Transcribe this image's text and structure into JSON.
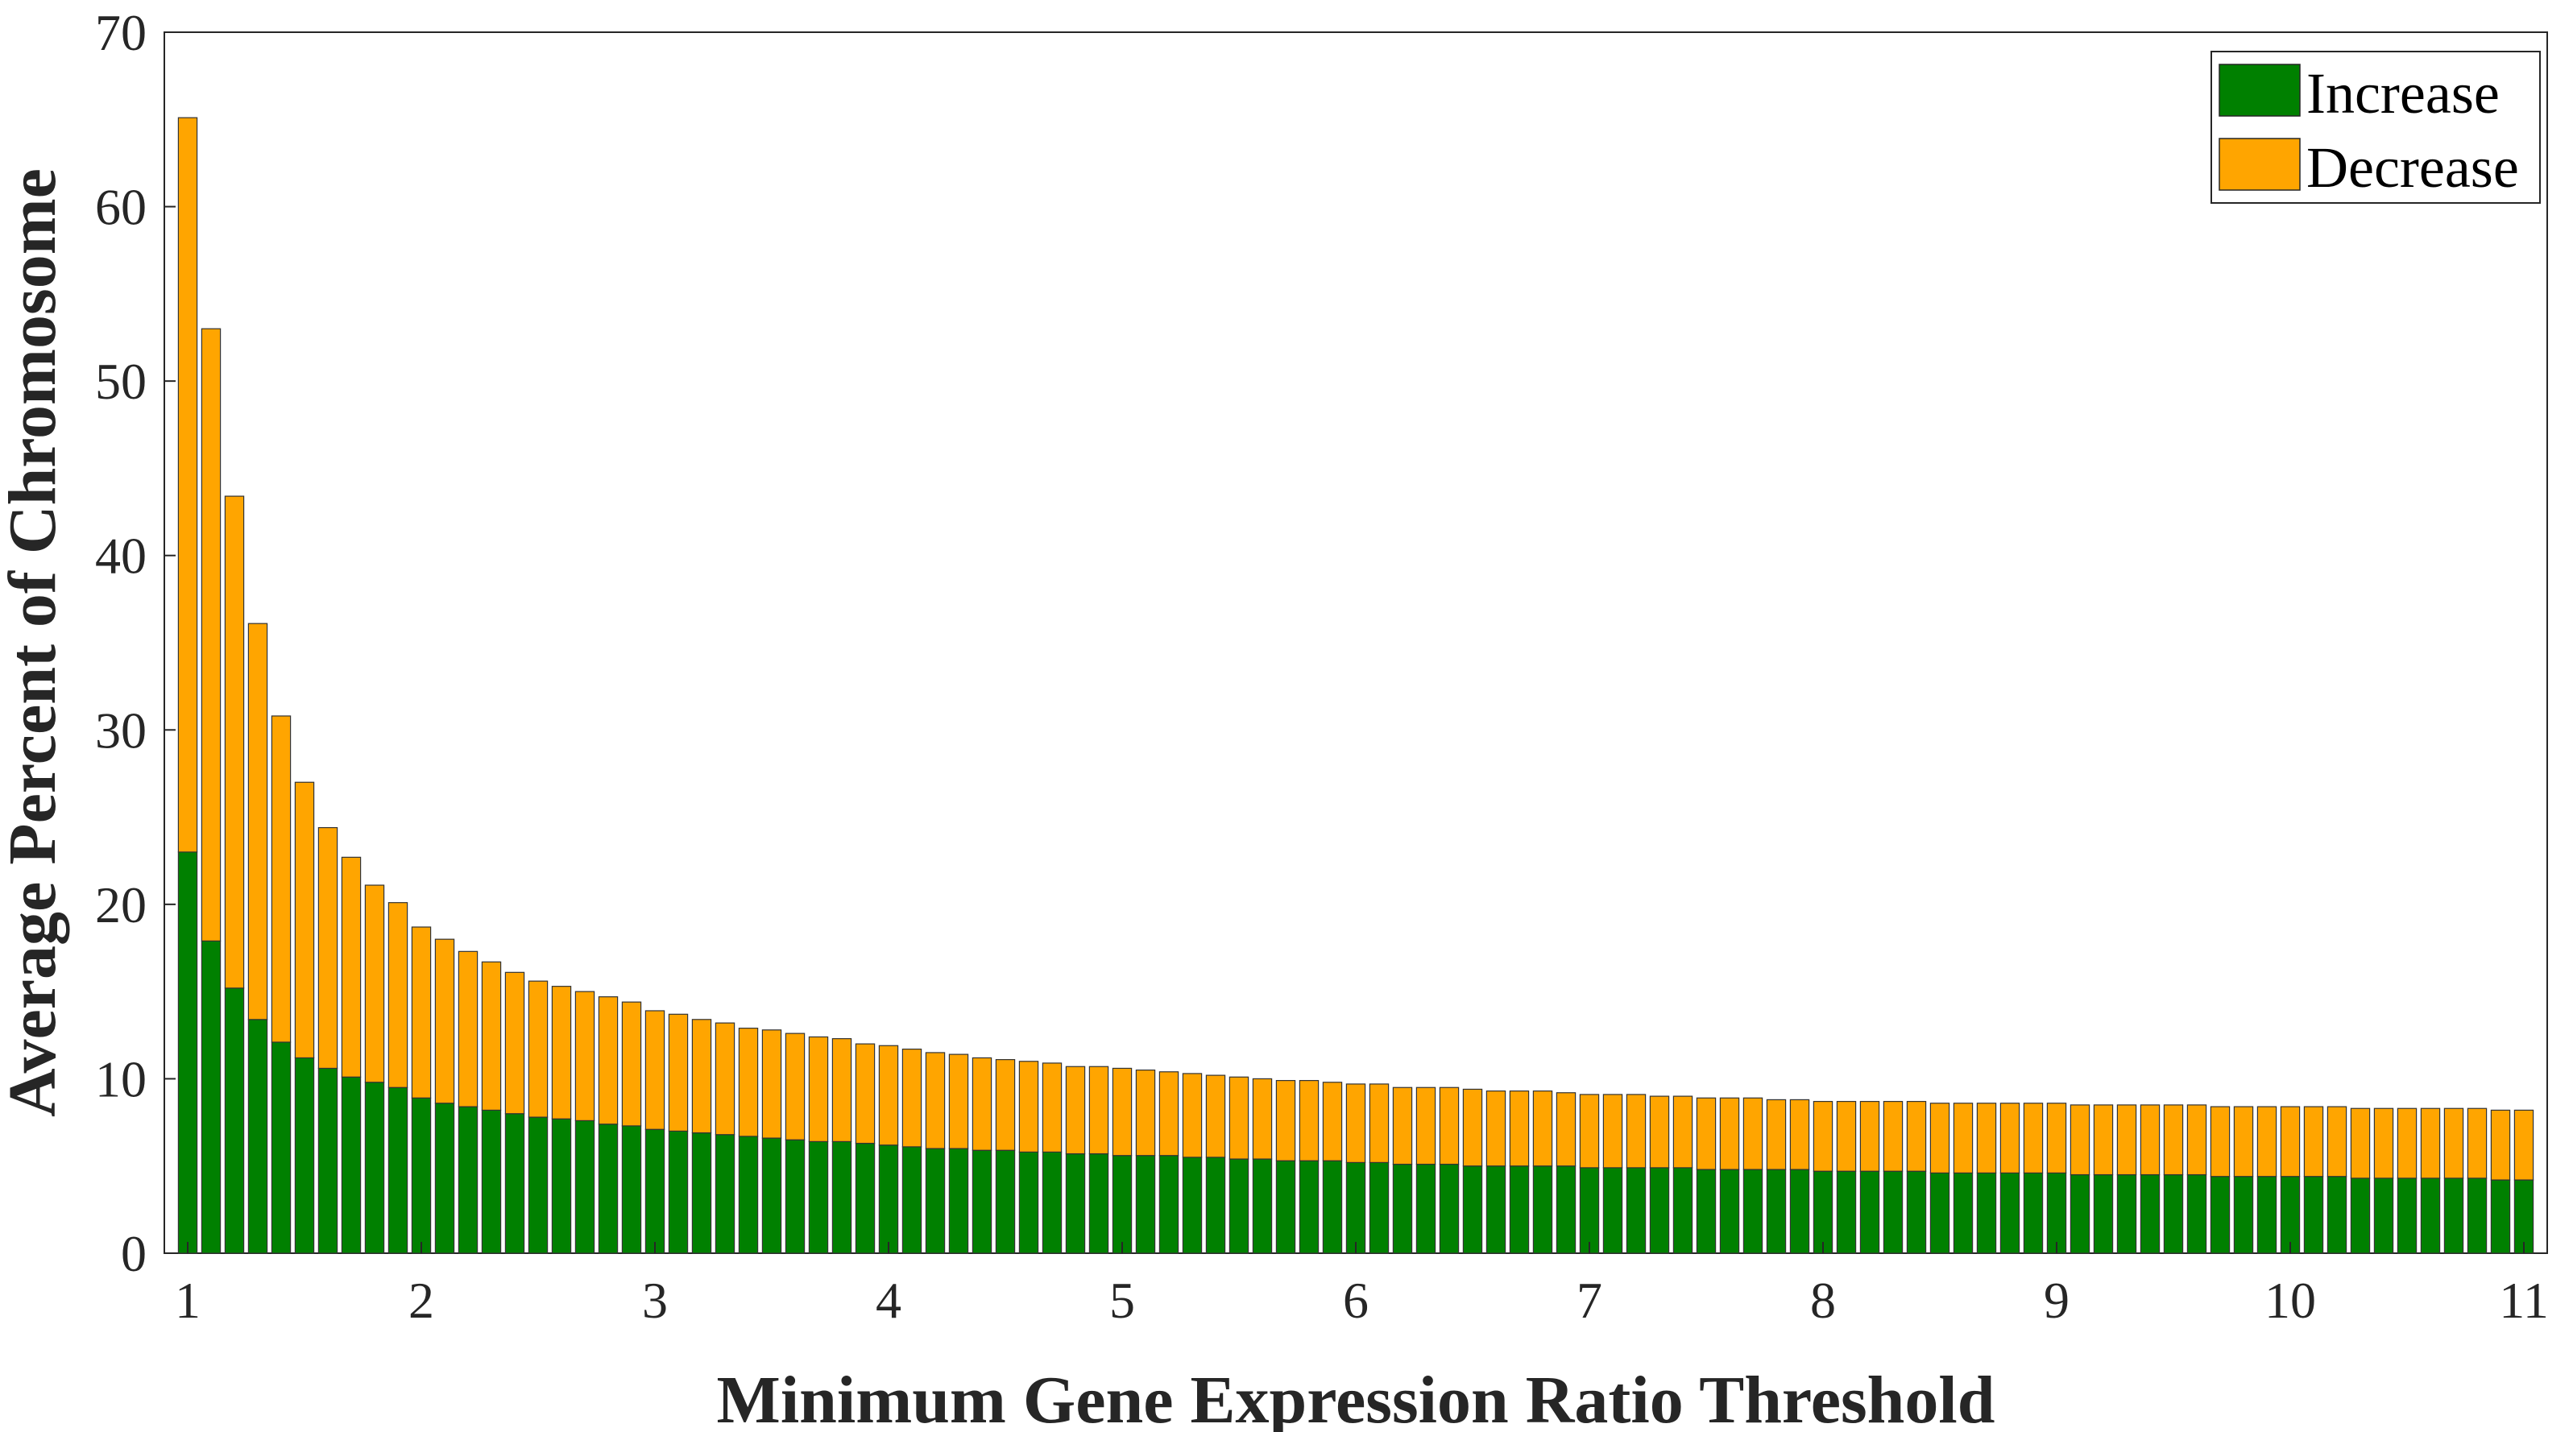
{
  "chart_data": {
    "type": "bar",
    "stacked": true,
    "title": "",
    "xlabel": "Minimum Gene Expression Ratio Threshold",
    "ylabel": "Average Percent of Chromosome",
    "xlim": [
      0.9,
      11.1
    ],
    "ylim": [
      0,
      70
    ],
    "x_ticks": [
      1,
      2,
      3,
      4,
      5,
      6,
      7,
      8,
      9,
      10,
      11
    ],
    "y_ticks": [
      0,
      10,
      20,
      30,
      40,
      50,
      60,
      70
    ],
    "grid": false,
    "legend_position": "top-right",
    "x_start": 1.0,
    "x_step": 0.1,
    "series": [
      {
        "name": "Increase",
        "color": "#008000",
        "values": [
          23.0,
          17.9,
          15.2,
          13.4,
          12.1,
          11.2,
          10.6,
          10.1,
          9.8,
          9.5,
          8.9,
          8.6,
          8.4,
          8.2,
          8.0,
          7.8,
          7.7,
          7.6,
          7.4,
          7.3,
          7.1,
          7.0,
          6.9,
          6.8,
          6.7,
          6.6,
          6.5,
          6.4,
          6.4,
          6.3,
          6.2,
          6.1,
          6.0,
          6.0,
          5.9,
          5.9,
          5.8,
          5.8,
          5.7,
          5.7,
          5.6,
          5.6,
          5.6,
          5.5,
          5.5,
          5.4,
          5.4,
          5.3,
          5.3,
          5.3,
          5.2,
          5.2,
          5.1,
          5.1,
          5.1,
          5.0,
          5.0,
          5.0,
          5.0,
          5.0,
          4.9,
          4.9,
          4.9,
          4.9,
          4.9,
          4.8,
          4.8,
          4.8,
          4.8,
          4.8,
          4.7,
          4.7,
          4.7,
          4.7,
          4.7,
          4.6,
          4.6,
          4.6,
          4.6,
          4.6,
          4.6,
          4.5,
          4.5,
          4.5,
          4.5,
          4.5,
          4.5,
          4.4,
          4.4,
          4.4,
          4.4,
          4.4,
          4.4,
          4.3,
          4.3,
          4.3,
          4.3,
          4.3,
          4.3,
          4.2,
          4.2
        ]
      },
      {
        "name": "Decrease",
        "color": "#FFA500",
        "values": [
          42.1,
          35.1,
          28.2,
          22.7,
          18.7,
          15.8,
          13.8,
          12.6,
          11.3,
          10.6,
          9.8,
          9.4,
          8.9,
          8.5,
          8.1,
          7.8,
          7.6,
          7.4,
          7.3,
          7.1,
          6.8,
          6.7,
          6.5,
          6.4,
          6.2,
          6.2,
          6.1,
          6.0,
          5.9,
          5.7,
          5.7,
          5.6,
          5.5,
          5.4,
          5.3,
          5.2,
          5.2,
          5.1,
          5.0,
          5.0,
          5.0,
          4.9,
          4.8,
          4.8,
          4.7,
          4.7,
          4.6,
          4.6,
          4.6,
          4.5,
          4.5,
          4.5,
          4.4,
          4.4,
          4.4,
          4.4,
          4.3,
          4.3,
          4.3,
          4.2,
          4.2,
          4.2,
          4.2,
          4.1,
          4.1,
          4.1,
          4.1,
          4.1,
          4.0,
          4.0,
          4.0,
          4.0,
          4.0,
          4.0,
          4.0,
          4.0,
          4.0,
          4.0,
          4.0,
          4.0,
          4.0,
          4.0,
          4.0,
          4.0,
          4.0,
          4.0,
          4.0,
          4.0,
          4.0,
          4.0,
          4.0,
          4.0,
          4.0,
          4.0,
          4.0,
          4.0,
          4.0,
          4.0,
          4.0,
          4.0,
          4.0
        ]
      }
    ]
  }
}
